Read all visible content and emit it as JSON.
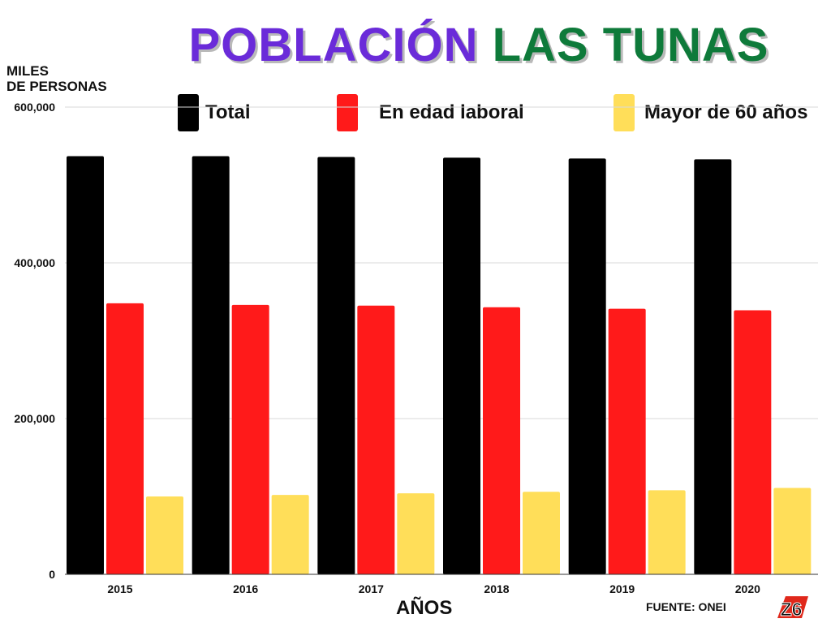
{
  "title": {
    "part1": "POBLACIÓN",
    "part2": "LAS TUNAS"
  },
  "colors": {
    "title_part1": "#6a2bd9",
    "title_part2": "#0e7a3a",
    "grid": "#d9d9d9"
  },
  "logo": {
    "text": "Z6"
  },
  "source": "FUENTE: ONEI",
  "chart_data": {
    "type": "bar",
    "ylabel_line1": "MILES",
    "ylabel_line2": "DE PERSONAS",
    "xlabel": "AÑOS",
    "ylim": [
      0,
      600000
    ],
    "yticks": [
      0,
      200000,
      400000,
      600000
    ],
    "ytick_labels": [
      "0",
      "200,000",
      "400,000",
      "600,000"
    ],
    "grid": true,
    "legend_position": "top",
    "categories": [
      "2015",
      "2016",
      "2017",
      "2018",
      "2019",
      "2020"
    ],
    "series": [
      {
        "name": "Total",
        "color": "#000000",
        "values": [
          537000,
          537000,
          536000,
          535000,
          534000,
          533000
        ]
      },
      {
        "name": "En edad laboral",
        "color": "#ff1a1a",
        "values": [
          348000,
          346000,
          345000,
          343000,
          341000,
          339000
        ]
      },
      {
        "name": "Mayor de 60 años",
        "color": "#ffde59",
        "values": [
          100000,
          102000,
          104000,
          106000,
          108000,
          111000
        ]
      }
    ]
  }
}
